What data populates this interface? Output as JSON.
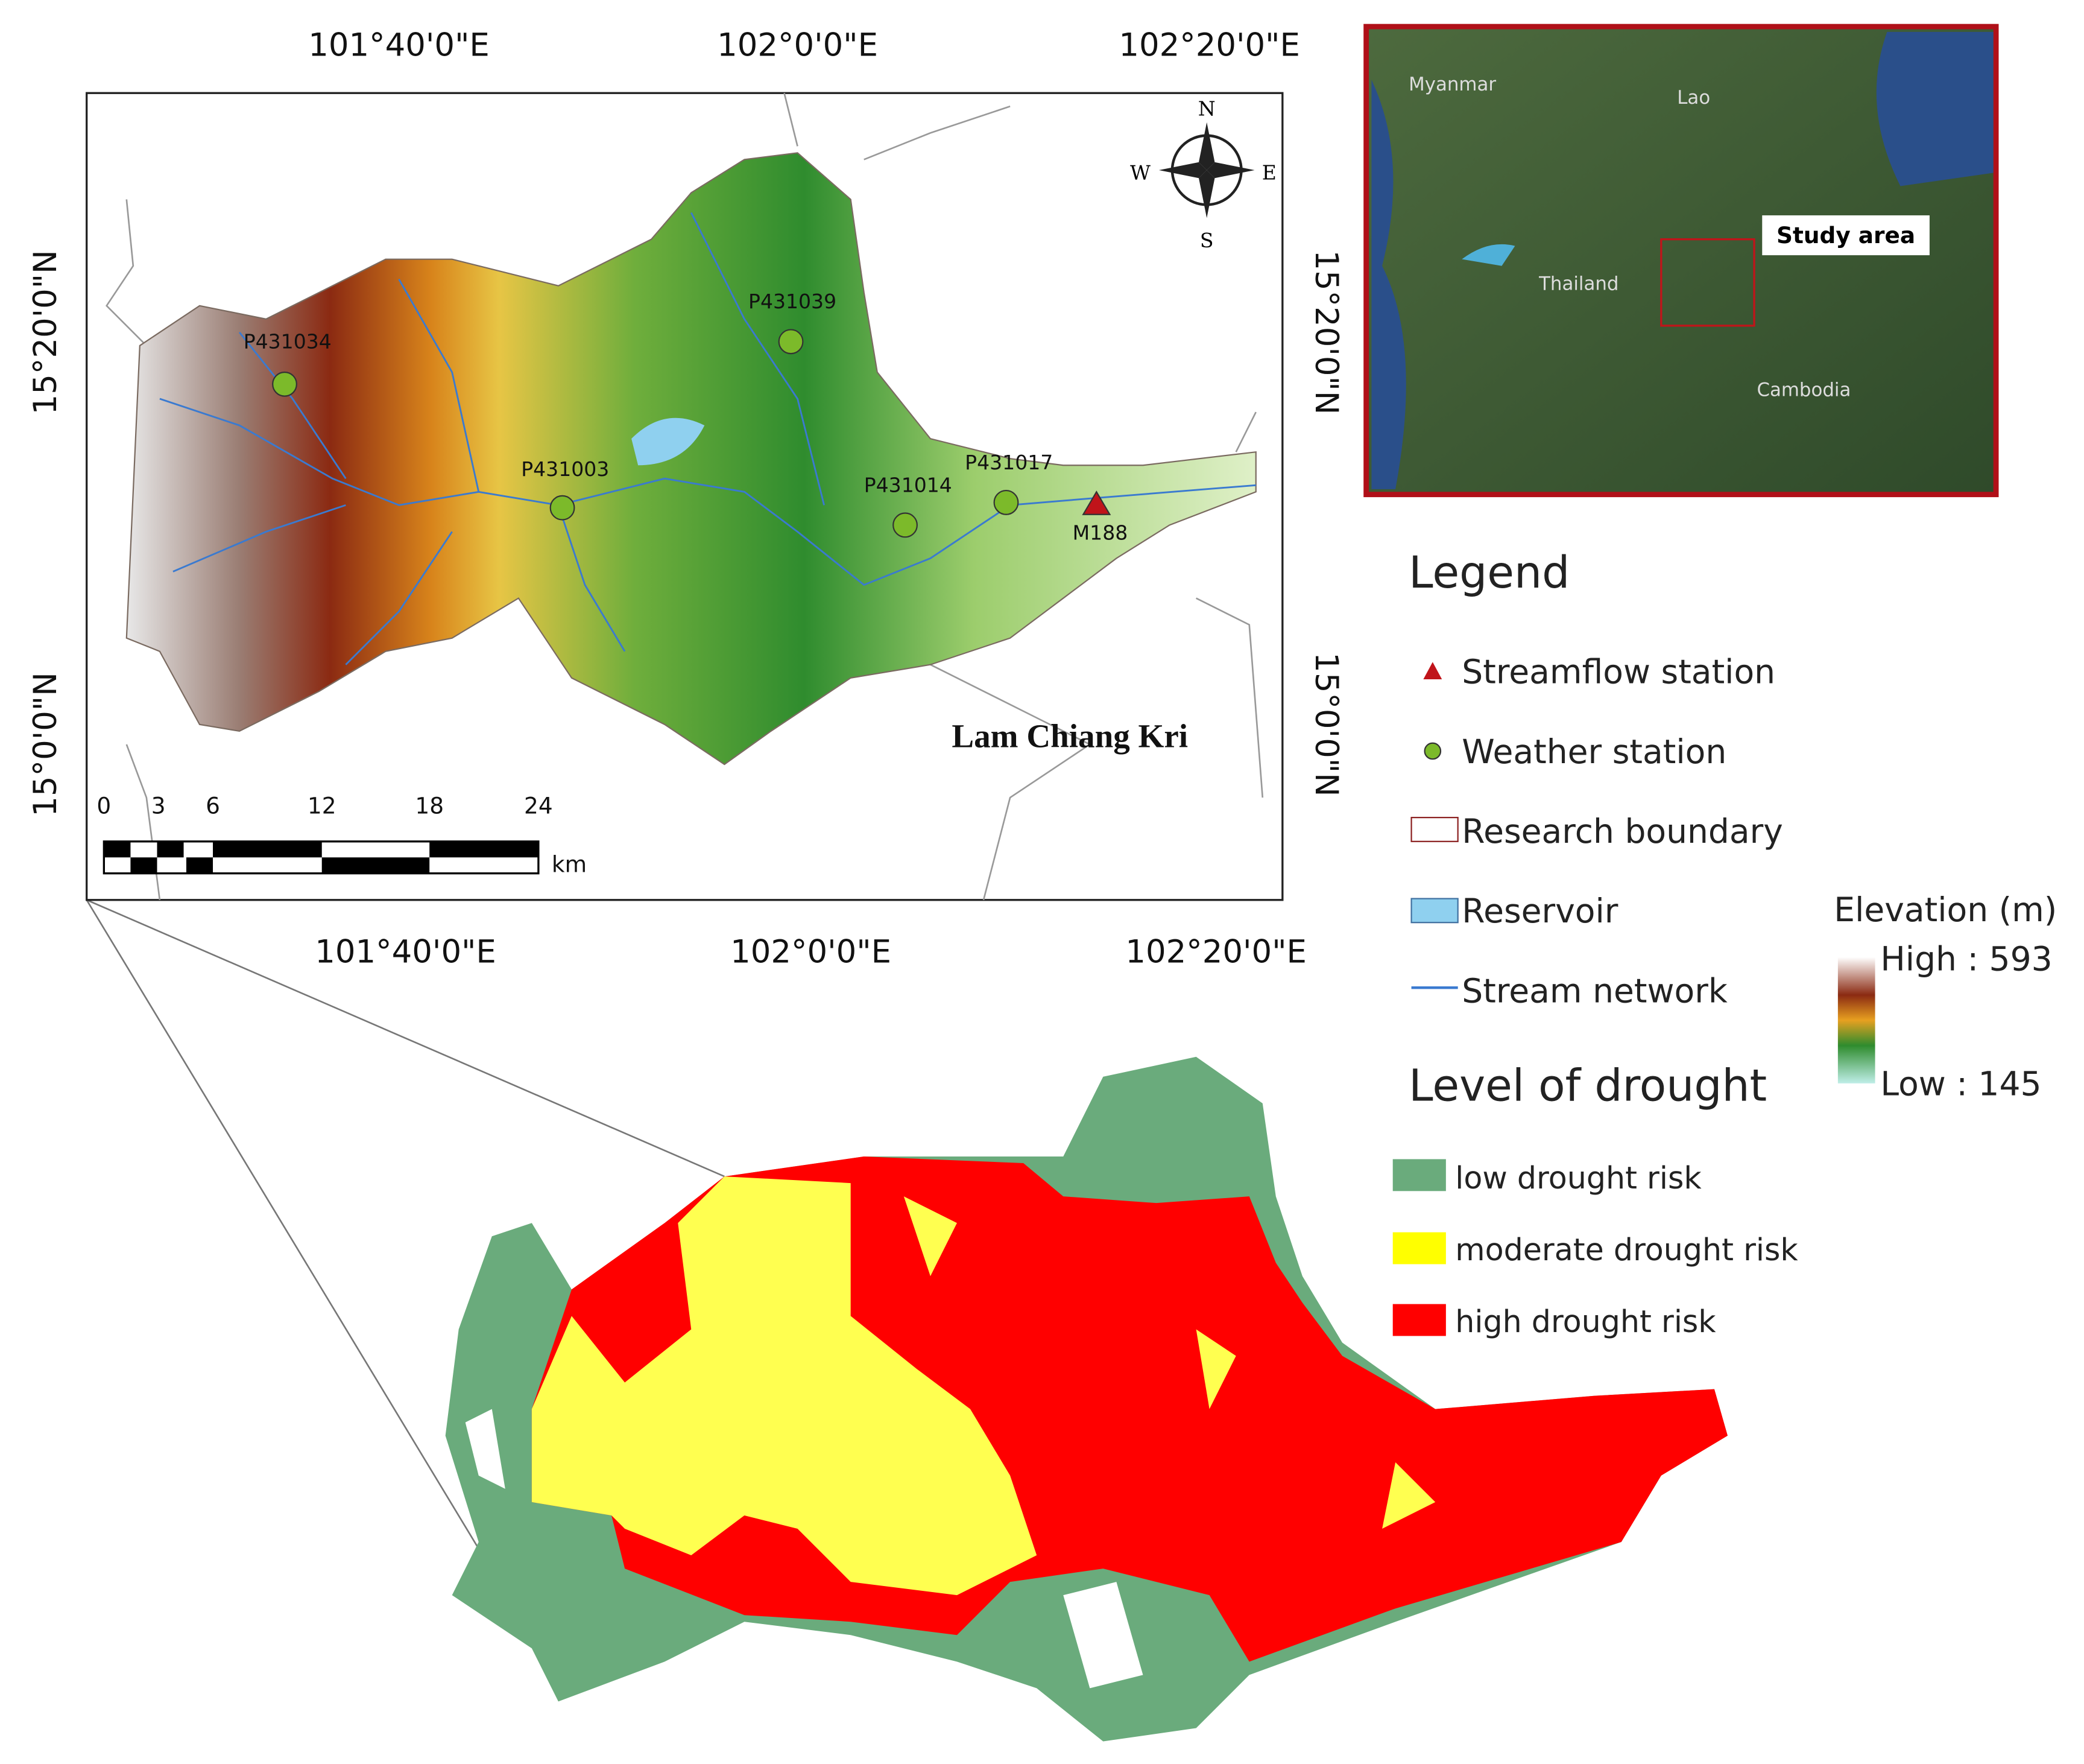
{
  "map": {
    "top_axis": [
      "101°40'0\"E",
      "102°0'0\"E",
      "102°20'0\"E"
    ],
    "bottom_axis": [
      "101°40'0\"E",
      "102°0'0\"E",
      "102°20'0\"E"
    ],
    "left_axis": [
      "15°20'0\"N",
      "15°0'0\"N"
    ],
    "right_axis": [
      "15°20'0\"N",
      "15°0'0\"N"
    ],
    "stations": [
      "P431034",
      "P431039",
      "P431003",
      "P431014",
      "P431017",
      "M188"
    ],
    "compass": [
      "N",
      "E",
      "S",
      "W"
    ],
    "place_label": "Lam Chiang Kri",
    "scale_bar": {
      "ticks": [
        "0",
        "3",
        "6",
        "12",
        "18",
        "24"
      ],
      "unit": "km"
    }
  },
  "inset": {
    "countries": [
      "Myanmar",
      "Lao",
      "Thailand",
      "Cambodia"
    ],
    "label": "Study area"
  },
  "legend": {
    "title": "Legend",
    "items": [
      "Streamflow station",
      "Weather station",
      "Research boundary",
      "Reservoir",
      "Stream network"
    ],
    "elevation": {
      "title": "Elevation (m)",
      "high": "High : 593",
      "low": "Low : 145"
    }
  },
  "drought_legend": {
    "title": "Level of drought",
    "items": [
      "low drought risk",
      "moderate drought risk",
      "high drought risk"
    ]
  }
}
